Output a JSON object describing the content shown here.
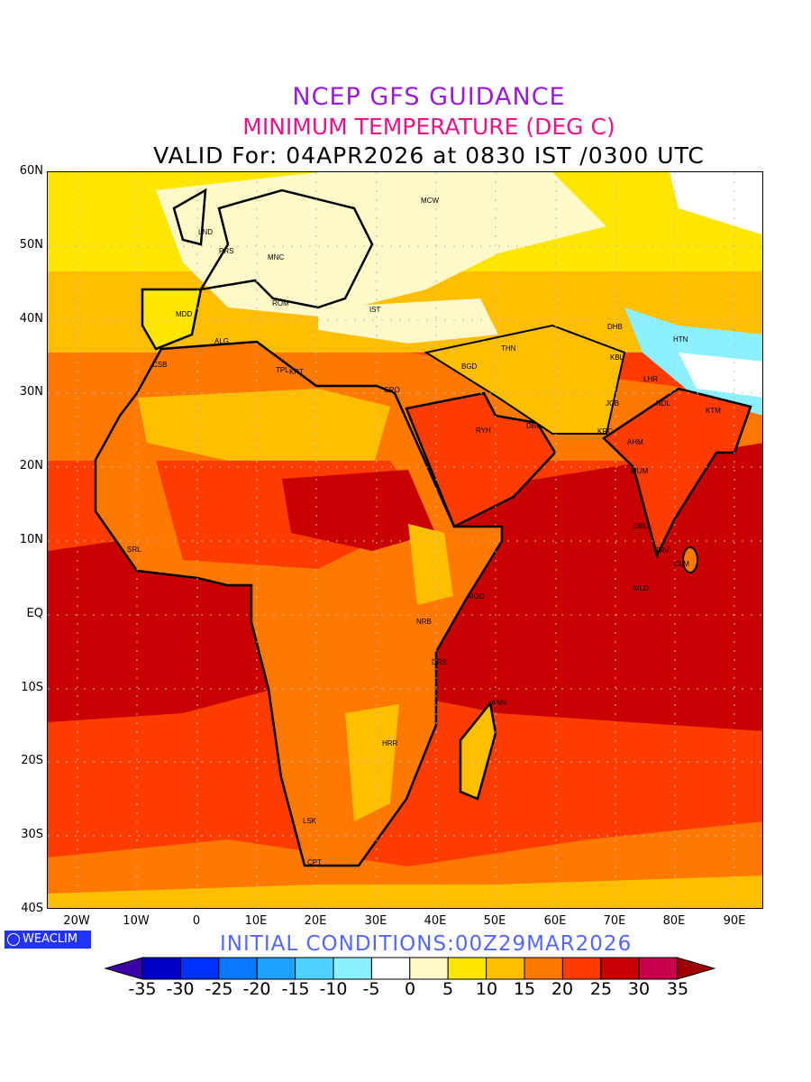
{
  "title": {
    "line1": "NCEP GFS GUIDANCE",
    "line2": "MINIMUM TEMPERATURE (DEG C)",
    "line3": "VALID For: 04APR2026 at 0830 IST /0300 UTC"
  },
  "axes": {
    "lat_labels": [
      "60N",
      "50N",
      "40N",
      "30N",
      "20N",
      "10N",
      "EQ",
      "10S",
      "20S",
      "30S",
      "40S"
    ],
    "lon_labels": [
      "20W",
      "10W",
      "0",
      "10E",
      "20E",
      "30E",
      "40E",
      "50E",
      "60E",
      "70E",
      "80E",
      "90E"
    ]
  },
  "cities": [
    "LND",
    "PRS",
    "MNC",
    "ROM",
    "MDD",
    "ALG",
    "CSB",
    "TPL",
    "KRT",
    "IST",
    "MCW",
    "THN",
    "BGD",
    "CRO",
    "DHB",
    "HTN",
    "KBL",
    "LHR",
    "JCB",
    "NDL",
    "KTM",
    "RYH",
    "DBI",
    "KRC",
    "AHM",
    "MUM",
    "DBL",
    "TRV",
    "CLM",
    "MLD",
    "MGD",
    "NRB",
    "DRS",
    "ANN",
    "HRR",
    "LSK",
    "CPT",
    "SRL"
  ],
  "logo": "WEACLIM",
  "initial_conditions": "INITIAL CONDITIONS:00Z29MAR2026",
  "colorbar": {
    "labels": [
      "-35",
      "-30",
      "-25",
      "-20",
      "-15",
      "-10",
      "-5",
      "0",
      "5",
      "10",
      "15",
      "20",
      "25",
      "30",
      "35"
    ],
    "colors": [
      "#3a00a8",
      "#0000c8",
      "#0032ff",
      "#0a78ff",
      "#1ea0ff",
      "#50d2ff",
      "#8cf0ff",
      "#ffffff",
      "#fff8c8",
      "#ffe600",
      "#ffbe00",
      "#ff7800",
      "#ff3c00",
      "#c80000",
      "#c8004c",
      "#a00000"
    ]
  }
}
